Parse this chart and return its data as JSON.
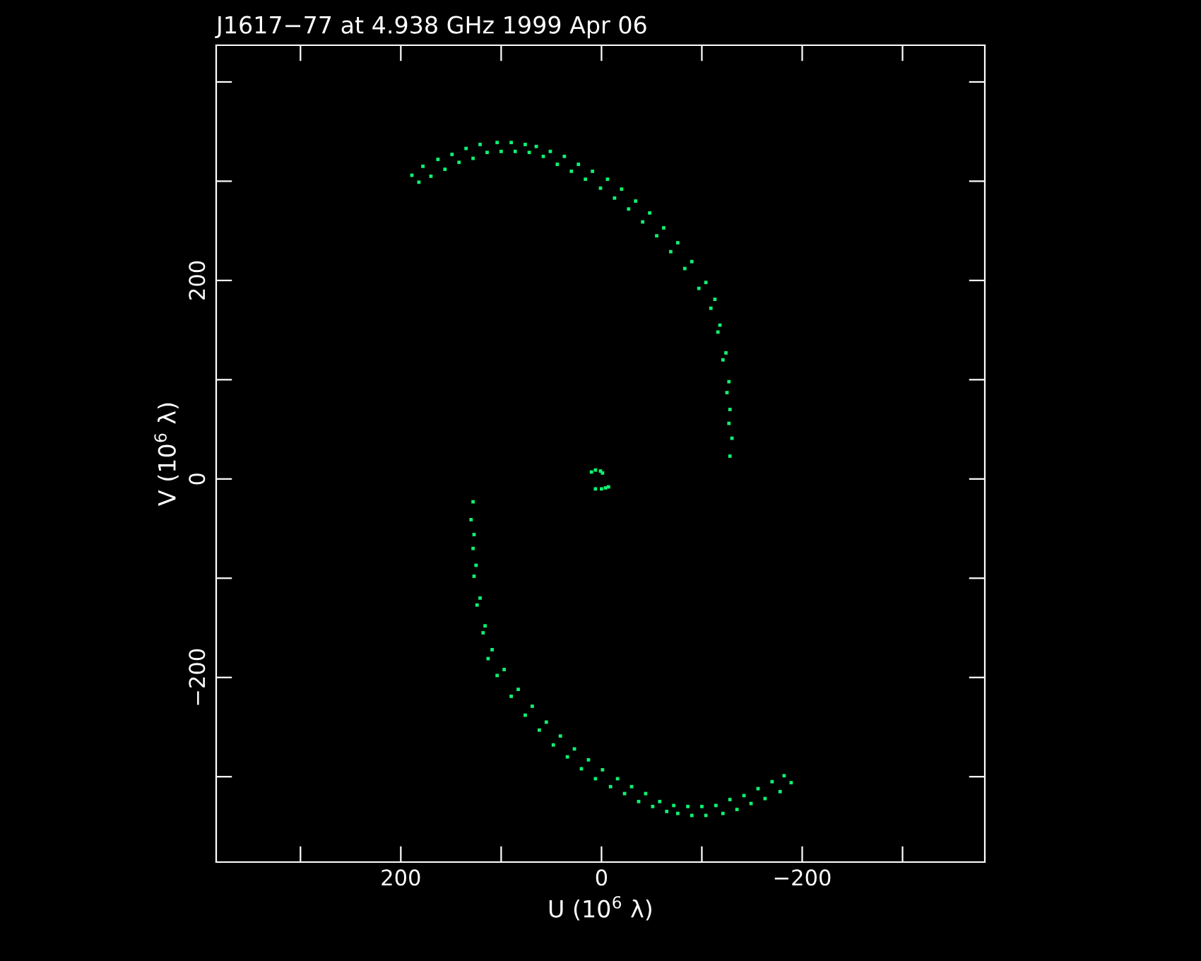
{
  "chart_data": {
    "type": "scatter",
    "title": "J1617−77 at 4.938 GHz 1999 Apr 06",
    "xlabel": "U (10$^{6}$ λ)",
    "ylabel": "V (10$^{6}$ λ)",
    "xlim": [
      384,
      -382
    ],
    "ylim": [
      -386,
      437
    ],
    "xticks": [
      {
        "value": 300,
        "label": null
      },
      {
        "value": 200,
        "label": "200"
      },
      {
        "value": 100,
        "label": null
      },
      {
        "value": 0,
        "label": "0"
      },
      {
        "value": -100,
        "label": null
      },
      {
        "value": -200,
        "label": "−200"
      },
      {
        "value": -300,
        "label": null
      }
    ],
    "yticks": [
      {
        "value": -300,
        "label": null
      },
      {
        "value": -200,
        "label": "−200"
      },
      {
        "value": -100,
        "label": null
      },
      {
        "value": 0,
        "label": "0"
      },
      {
        "value": 100,
        "label": null
      },
      {
        "value": 200,
        "label": "200"
      },
      {
        "value": 300,
        "label": null
      },
      {
        "value": 400,
        "label": null
      }
    ],
    "grid": false,
    "legend": false,
    "marker": "square",
    "series": [
      {
        "color": "#10f070",
        "x": [
          189,
          178,
          163,
          149,
          135,
          121,
          104,
          90,
          76,
          65,
          51,
          37,
          23,
          9,
          -6,
          -20,
          -34,
          -48,
          -62,
          -76,
          -90,
          -104,
          -113,
          -118,
          -124,
          -127,
          -128,
          -130,
          -128,
          182,
          170,
          156,
          142,
          128,
          114,
          100,
          86,
          72,
          58,
          44,
          30,
          16,
          1,
          -13,
          -27,
          -41,
          -55,
          -69,
          -83,
          -97,
          -109,
          -116,
          -121,
          -125,
          -127,
          -189,
          -178,
          -163,
          -149,
          -135,
          -121,
          -104,
          -90,
          -76,
          -65,
          -51,
          -37,
          -23,
          -9,
          6,
          20,
          34,
          48,
          62,
          76,
          90,
          104,
          113,
          118,
          124,
          127,
          128,
          130,
          128,
          -182,
          -170,
          -156,
          -142,
          -128,
          -114,
          -100,
          -86,
          -72,
          -58,
          -44,
          -30,
          -16,
          -1,
          13,
          27,
          41,
          55,
          69,
          83,
          97,
          109,
          116,
          121,
          125,
          127,
          10,
          6,
          1,
          -1,
          6,
          0,
          -4,
          -7
        ],
        "values": [
          306,
          315,
          322,
          327,
          333,
          337,
          339,
          339,
          337,
          335,
          330,
          325,
          317,
          310,
          302,
          292,
          280,
          268,
          253,
          238,
          219,
          198,
          181,
          155,
          127,
          98,
          70,
          41,
          23,
          299,
          305,
          312,
          319,
          323,
          329,
          330,
          330,
          329,
          325,
          317,
          310,
          302,
          293,
          283,
          272,
          259,
          245,
          229,
          212,
          192,
          172,
          148,
          120,
          87,
          56,
          -306,
          -315,
          -322,
          -327,
          -333,
          -337,
          -339,
          -339,
          -337,
          -335,
          -330,
          -325,
          -317,
          -310,
          -302,
          -292,
          -280,
          -268,
          -253,
          -238,
          -219,
          -198,
          -181,
          -155,
          -127,
          -98,
          -70,
          -41,
          -23,
          -299,
          -305,
          -312,
          -319,
          -323,
          -329,
          -330,
          -330,
          -329,
          -325,
          -317,
          -310,
          -302,
          -293,
          -283,
          -272,
          -259,
          -245,
          -229,
          -212,
          -192,
          -172,
          -148,
          -120,
          -87,
          -56,
          7,
          9,
          8,
          6,
          -10,
          -10,
          -9,
          -8
        ]
      }
    ]
  }
}
